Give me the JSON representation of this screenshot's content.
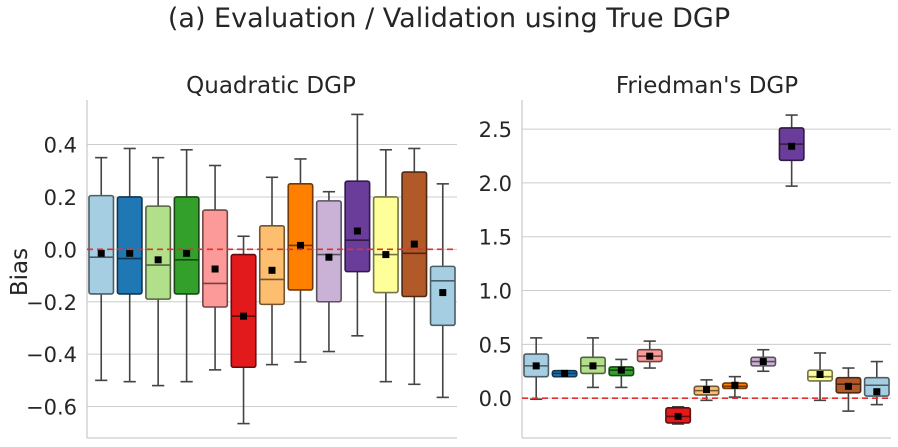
{
  "figure": {
    "suptitle": "(a) Evaluation / Validation using True DGP"
  },
  "colors": {
    "reference_line": "#e03030",
    "grid": "#cccccc",
    "mean_marker": "#000000",
    "whisker": "#444444",
    "palette": [
      "#a6cee3",
      "#1f78b4",
      "#b2df8a",
      "#33a02c",
      "#fb9a99",
      "#e31a1c",
      "#fdbf6f",
      "#ff7f00",
      "#cab2d6",
      "#6a3d9a",
      "#ffff99",
      "#b15928",
      "#a6cee3"
    ]
  },
  "chart_data": [
    {
      "type": "box",
      "title": "Quadratic DGP",
      "ylabel": "Bias",
      "xlabel": "",
      "ylim": [
        -0.72,
        0.57
      ],
      "yticks": [
        -0.6,
        -0.4,
        -0.2,
        0.0,
        0.2,
        0.4
      ],
      "ytick_labels": [
        "−0.6",
        "−0.4",
        "−0.2",
        "0.0",
        "0.2",
        "0.4"
      ],
      "grid": "horizontal",
      "reference_line": 0.0,
      "boxes": [
        {
          "q1": -0.17,
          "median": -0.03,
          "q3": 0.205,
          "whisker_low": -0.5,
          "whisker_high": 0.35,
          "mean": -0.015
        },
        {
          "q1": -0.17,
          "median": -0.035,
          "q3": 0.2,
          "whisker_low": -0.505,
          "whisker_high": 0.385,
          "mean": -0.015
        },
        {
          "q1": -0.19,
          "median": -0.06,
          "q3": 0.165,
          "whisker_low": -0.52,
          "whisker_high": 0.35,
          "mean": -0.04
        },
        {
          "q1": -0.17,
          "median": -0.04,
          "q3": 0.2,
          "whisker_low": -0.505,
          "whisker_high": 0.38,
          "mean": -0.015
        },
        {
          "q1": -0.22,
          "median": -0.13,
          "q3": 0.15,
          "whisker_low": -0.46,
          "whisker_high": 0.32,
          "mean": -0.075
        },
        {
          "q1": -0.45,
          "median": -0.255,
          "q3": -0.02,
          "whisker_low": -0.665,
          "whisker_high": 0.05,
          "mean": -0.255
        },
        {
          "q1": -0.21,
          "median": -0.115,
          "q3": 0.09,
          "whisker_low": -0.44,
          "whisker_high": 0.275,
          "mean": -0.08
        },
        {
          "q1": -0.155,
          "median": 0.015,
          "q3": 0.25,
          "whisker_low": -0.43,
          "whisker_high": 0.345,
          "mean": 0.015
        },
        {
          "q1": -0.2,
          "median": -0.02,
          "q3": 0.185,
          "whisker_low": -0.39,
          "whisker_high": 0.22,
          "mean": -0.03
        },
        {
          "q1": -0.085,
          "median": 0.035,
          "q3": 0.26,
          "whisker_low": -0.33,
          "whisker_high": 0.515,
          "mean": 0.07
        },
        {
          "q1": -0.165,
          "median": -0.02,
          "q3": 0.2,
          "whisker_low": -0.505,
          "whisker_high": 0.38,
          "mean": -0.02
        },
        {
          "q1": -0.18,
          "median": -0.015,
          "q3": 0.295,
          "whisker_low": -0.515,
          "whisker_high": 0.385,
          "mean": 0.02
        },
        {
          "q1": -0.29,
          "median": -0.12,
          "q3": -0.065,
          "whisker_low": -0.565,
          "whisker_high": 0.25,
          "mean": -0.165
        }
      ]
    },
    {
      "type": "box",
      "title": "Friedman's DGP",
      "ylabel": "",
      "xlabel": "",
      "ylim": [
        -0.37,
        2.77
      ],
      "yticks": [
        0.0,
        0.5,
        1.0,
        1.5,
        2.0,
        2.5
      ],
      "ytick_labels": [
        "0.0",
        "0.5",
        "1.0",
        "1.5",
        "2.0",
        "2.5"
      ],
      "grid": "horizontal",
      "reference_line": 0.0,
      "boxes": [
        {
          "q1": 0.2,
          "median": 0.3,
          "q3": 0.41,
          "whisker_low": -0.01,
          "whisker_high": 0.56,
          "mean": 0.3
        },
        {
          "q1": 0.2,
          "median": 0.23,
          "q3": 0.255,
          "whisker_low": 0.2,
          "whisker_high": 0.255,
          "mean": 0.23
        },
        {
          "q1": 0.23,
          "median": 0.3,
          "q3": 0.38,
          "whisker_low": 0.1,
          "whisker_high": 0.56,
          "mean": 0.3
        },
        {
          "q1": 0.21,
          "median": 0.26,
          "q3": 0.29,
          "whisker_low": 0.1,
          "whisker_high": 0.36,
          "mean": 0.26
        },
        {
          "q1": 0.34,
          "median": 0.39,
          "q3": 0.45,
          "whisker_low": 0.28,
          "whisker_high": 0.53,
          "mean": 0.39
        },
        {
          "q1": -0.23,
          "median": -0.17,
          "q3": -0.09,
          "whisker_low": -0.24,
          "whisker_high": -0.08,
          "mean": -0.17
        },
        {
          "q1": 0.03,
          "median": 0.07,
          "q3": 0.11,
          "whisker_low": -0.02,
          "whisker_high": 0.17,
          "mean": 0.08
        },
        {
          "q1": 0.09,
          "median": 0.11,
          "q3": 0.14,
          "whisker_low": 0.01,
          "whisker_high": 0.2,
          "mean": 0.12
        },
        {
          "q1": 0.3,
          "median": 0.34,
          "q3": 0.38,
          "whisker_low": 0.25,
          "whisker_high": 0.45,
          "mean": 0.34
        },
        {
          "q1": 2.21,
          "median": 2.36,
          "q3": 2.51,
          "whisker_low": 1.97,
          "whisker_high": 2.63,
          "mean": 2.34
        },
        {
          "q1": 0.16,
          "median": 0.2,
          "q3": 0.26,
          "whisker_low": -0.02,
          "whisker_high": 0.42,
          "mean": 0.22
        },
        {
          "q1": 0.05,
          "median": 0.13,
          "q3": 0.19,
          "whisker_low": -0.12,
          "whisker_high": 0.28,
          "mean": 0.11
        },
        {
          "q1": 0.02,
          "median": 0.12,
          "q3": 0.19,
          "whisker_low": -0.06,
          "whisker_high": 0.34,
          "mean": 0.06
        }
      ]
    }
  ]
}
